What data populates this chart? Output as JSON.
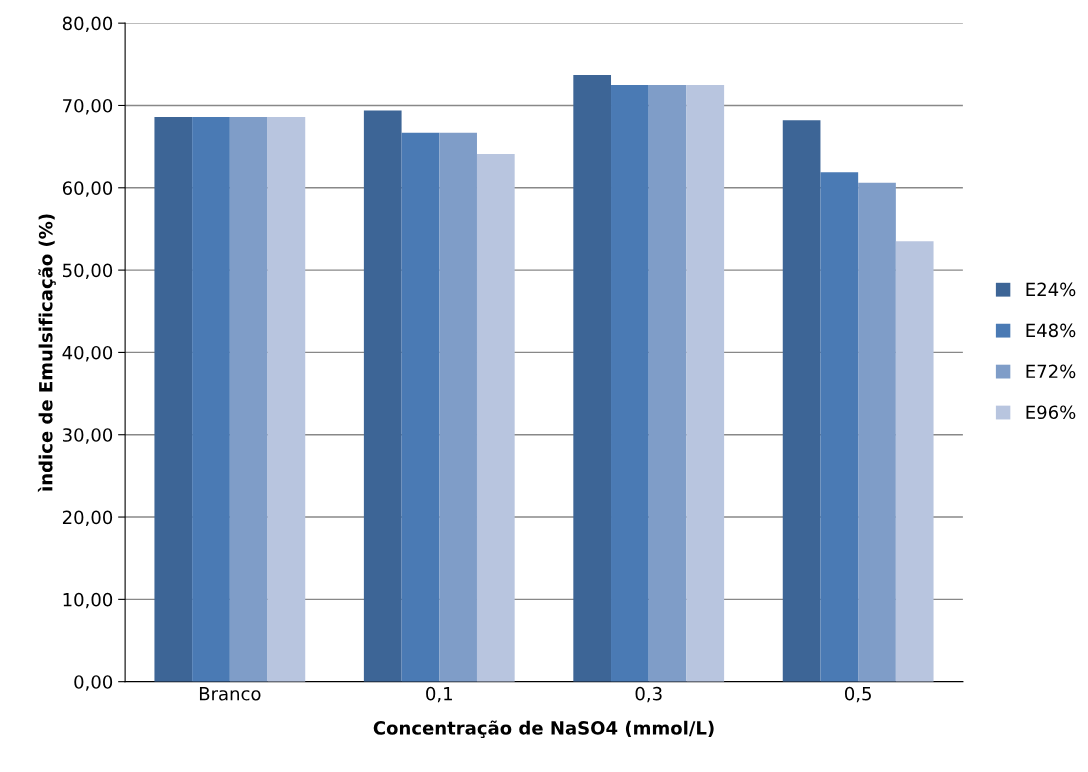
{
  "chart_data": {
    "type": "bar",
    "xlabel": "Concentração de NaSO4 (mmol/L)",
    "ylabel": "ìndice de Emulsificação (%)",
    "categories": [
      "Branco",
      "0,1",
      "0,3",
      "0,5"
    ],
    "series": [
      {
        "name": "E24%",
        "color": "#3d6596",
        "values": [
          68.6,
          69.4,
          73.7,
          68.2
        ]
      },
      {
        "name": "E48%",
        "color": "#4a7ab4",
        "values": [
          68.6,
          66.7,
          72.5,
          61.9
        ]
      },
      {
        "name": "E72%",
        "color": "#7f9dc8",
        "values": [
          68.6,
          66.7,
          72.5,
          60.6
        ]
      },
      {
        "name": "E96%",
        "color": "#b8c5df",
        "values": [
          68.6,
          64.1,
          72.5,
          53.5
        ]
      }
    ],
    "ylim": [
      0,
      80
    ],
    "yticks": [
      {
        "value": 0,
        "label": "0,00"
      },
      {
        "value": 10,
        "label": "10,00"
      },
      {
        "value": 20,
        "label": "20,00"
      },
      {
        "value": 30,
        "label": "30,00"
      },
      {
        "value": 40,
        "label": "40,00"
      },
      {
        "value": 50,
        "label": "50,00"
      },
      {
        "value": 60,
        "label": "60,00"
      },
      {
        "value": 70,
        "label": "70,00"
      },
      {
        "value": 80,
        "label": "80,00"
      }
    ],
    "grid": "y",
    "legend": "right"
  }
}
